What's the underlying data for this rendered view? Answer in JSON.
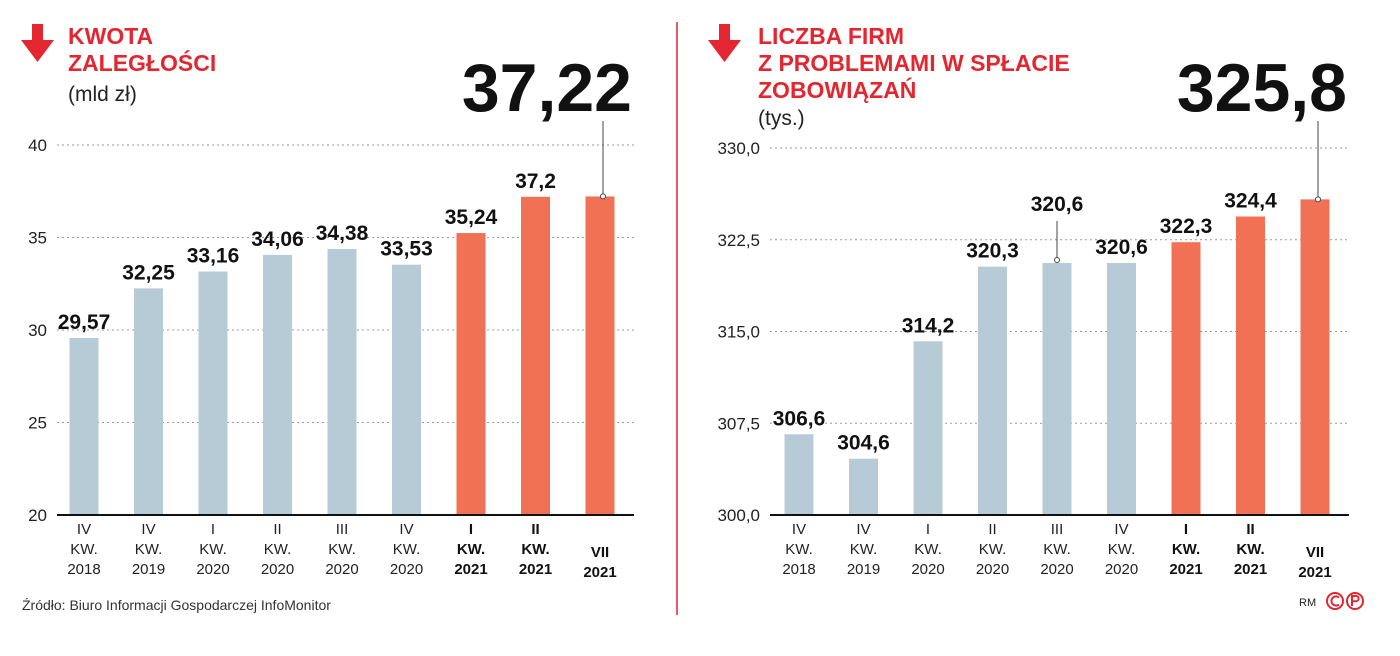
{
  "chart_data": [
    {
      "type": "bar",
      "title": [
        "KWOTA",
        "ZALEGŁOŚCI"
      ],
      "unit": "(mld zł)",
      "headline": "37,22",
      "yticks": [
        "20",
        "25",
        "30",
        "35",
        "40"
      ],
      "ylim": [
        20,
        40
      ],
      "categories": [
        {
          "lines": [
            "IV",
            "KW.",
            "2018"
          ],
          "bold": false
        },
        {
          "lines": [
            "IV",
            "KW.",
            "2019"
          ],
          "bold": false
        },
        {
          "lines": [
            "I",
            "KW.",
            "2020"
          ],
          "bold": false
        },
        {
          "lines": [
            "II",
            "KW.",
            "2020"
          ],
          "bold": false
        },
        {
          "lines": [
            "III",
            "KW.",
            "2020"
          ],
          "bold": false
        },
        {
          "lines": [
            "IV",
            "KW.",
            "2020"
          ],
          "bold": false
        },
        {
          "lines": [
            "I",
            "KW.",
            "2021"
          ],
          "bold": true
        },
        {
          "lines": [
            "II",
            "KW.",
            "2021"
          ],
          "bold": true
        },
        {
          "lines": [
            "VII",
            "2021"
          ],
          "bold": true
        }
      ],
      "values": [
        29.57,
        32.25,
        33.16,
        34.06,
        34.38,
        33.53,
        35.24,
        37.2,
        37.22
      ],
      "labels": [
        "29,57",
        "32,25",
        "33,16",
        "34,06",
        "34,38",
        "33,53",
        "35,24",
        "37,2",
        ""
      ],
      "highlight": [
        false,
        false,
        false,
        false,
        false,
        false,
        true,
        true,
        true
      ],
      "callout_index": 8
    },
    {
      "type": "bar",
      "title": [
        "LICZBA FIRM",
        "Z PROBLEMAMI W SPŁACIE",
        "ZOBOWIĄZAŃ"
      ],
      "unit": "(tys.)",
      "headline": "325,8",
      "yticks": [
        "300,0",
        "307,5",
        "315,0",
        "322,5",
        "330,0"
      ],
      "ylim": [
        300,
        330
      ],
      "categories": [
        {
          "lines": [
            "IV",
            "KW.",
            "2018"
          ],
          "bold": false
        },
        {
          "lines": [
            "IV",
            "KW.",
            "2019"
          ],
          "bold": false
        },
        {
          "lines": [
            "I",
            "KW.",
            "2020"
          ],
          "bold": false
        },
        {
          "lines": [
            "II",
            "KW.",
            "2020"
          ],
          "bold": false
        },
        {
          "lines": [
            "III",
            "KW.",
            "2020"
          ],
          "bold": false
        },
        {
          "lines": [
            "IV",
            "KW.",
            "2020"
          ],
          "bold": false
        },
        {
          "lines": [
            "I",
            "KW.",
            "2021"
          ],
          "bold": true
        },
        {
          "lines": [
            "II",
            "KW.",
            "2021"
          ],
          "bold": true
        },
        {
          "lines": [
            "VII",
            "2021"
          ],
          "bold": true
        }
      ],
      "values": [
        306.6,
        304.6,
        314.2,
        320.3,
        320.6,
        320.6,
        322.3,
        324.4,
        325.8
      ],
      "labels": [
        "306,6",
        "304,6",
        "314,2",
        "320,3",
        "320,6",
        "320,6",
        "322,3",
        "324,4",
        ""
      ],
      "highlight": [
        false,
        false,
        false,
        false,
        false,
        false,
        true,
        true,
        true
      ],
      "callout_index": 8,
      "raised_label_index": 4
    }
  ],
  "colors": {
    "accent": "#e3262f",
    "bar": "#b7cbd7",
    "bar_highlight": "#f07154",
    "grid": "#9a9a9a",
    "axis": "#111111"
  },
  "footer": {
    "source": "Źródło: Biuro Informacji Gospodarczej InfoMonitor",
    "author": "RM",
    "logo_icon": "copyright-p-logo-icon"
  }
}
